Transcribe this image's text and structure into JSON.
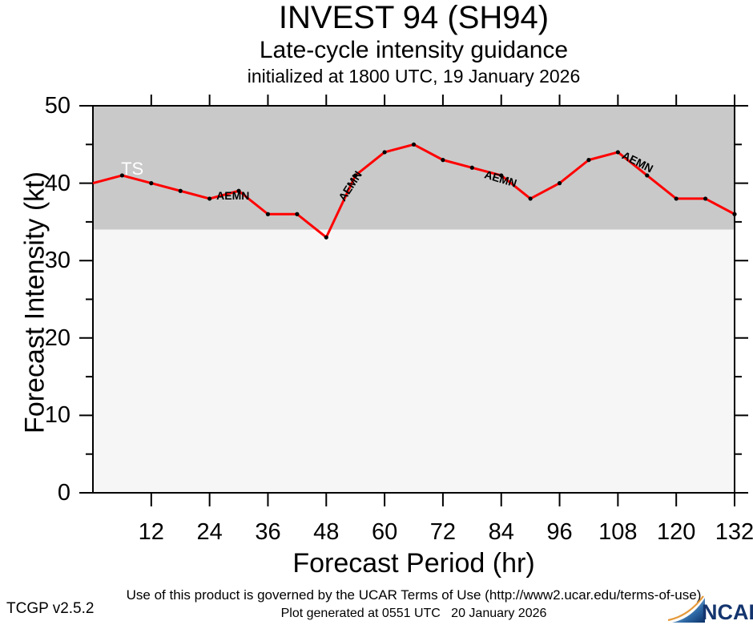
{
  "header": {
    "title": "INVEST 94 (SH94)",
    "subtitle": "Late-cycle intensity guidance",
    "init_line": "initialized at 1800 UTC, 19 January 2026"
  },
  "chart_data": {
    "type": "line",
    "title": "INVEST 94 (SH94)",
    "subtitle": "Late-cycle intensity guidance",
    "init_line": "initialized at 1800 UTC, 19 January 2026",
    "xlabel": "Forecast Period (hr)",
    "ylabel": "Forecast Intensity (kt)",
    "xlim": [
      0,
      132
    ],
    "ylim": [
      0,
      50
    ],
    "x_ticks": [
      12,
      24,
      36,
      48,
      60,
      72,
      84,
      96,
      108,
      120,
      132
    ],
    "y_ticks_major": [
      0,
      10,
      20,
      30,
      40,
      50
    ],
    "y_ticks_minor": [
      5,
      15,
      25,
      35,
      45
    ],
    "ts_threshold_kt": 34,
    "grid": false,
    "legend": "inline line labels",
    "series": [
      {
        "name": "AEMN",
        "color": "#ff0000",
        "x": [
          0,
          6,
          12,
          18,
          24,
          30,
          36,
          42,
          48,
          54,
          60,
          66,
          72,
          78,
          84,
          90,
          96,
          102,
          108,
          114,
          120,
          126,
          132
        ],
        "values": [
          40,
          41,
          40,
          39,
          38,
          39,
          36,
          36,
          33,
          41,
          44,
          45,
          43,
          42,
          41,
          38,
          40,
          43,
          44,
          41,
          38,
          38,
          36
        ]
      }
    ],
    "annotations": [
      {
        "text": "TS",
        "hr": 8.1,
        "kt": 41.8,
        "rot": 0,
        "color": "#ffffff",
        "size": 22,
        "weight": "normal"
      },
      {
        "text": "AEMN",
        "hr": 28.8,
        "kt": 38.4,
        "rot": 0,
        "color": "#000000",
        "size": 14,
        "weight": "bold"
      },
      {
        "text": "AEMN",
        "hr": 52.9,
        "kt": 39.6,
        "rot": -57,
        "color": "#000000",
        "size": 14,
        "weight": "bold"
      },
      {
        "text": "AEMN",
        "hr": 83.8,
        "kt": 40.6,
        "rot": 17,
        "color": "#000000",
        "size": 14,
        "weight": "bold"
      },
      {
        "text": "AEMN",
        "hr": 112.0,
        "kt": 42.8,
        "rot": 27,
        "color": "#000000",
        "size": 14,
        "weight": "bold"
      }
    ],
    "colors": {
      "ts_band": "#c9c9c9",
      "plot_bg": "#f6f6f6",
      "line": "#ff0000",
      "marker": "#000000",
      "axis": "#000000"
    }
  },
  "footer": {
    "terms": "Use of this product is governed by the UCAR Terms of Use (http://www2.ucar.edu/terms-of-use)",
    "generated": "Plot generated at 0551 UTC   20 January 2026",
    "version": "TCGP v2.5.2",
    "logo_text": "NCAR"
  }
}
